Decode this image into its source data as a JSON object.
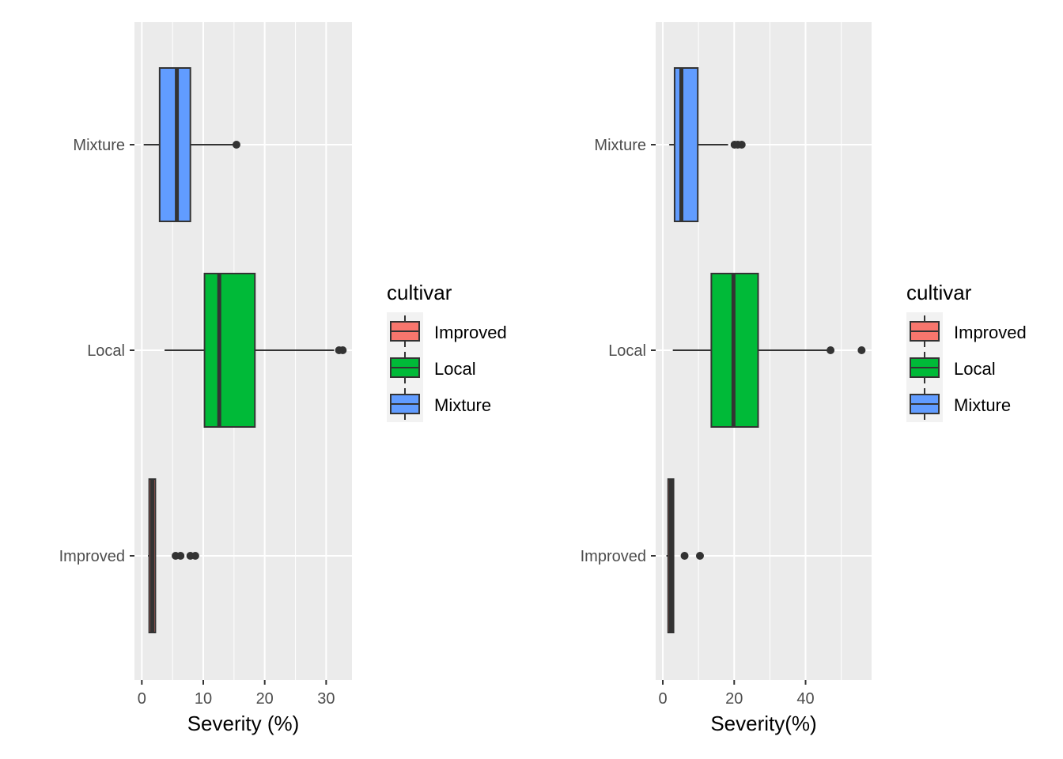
{
  "chart_data": [
    {
      "type": "boxplot",
      "orientation": "horizontal",
      "xlabel": "Severity (%)",
      "xlim": [
        -1.2,
        34.2
      ],
      "xticks": [
        0,
        10,
        20,
        30
      ],
      "minor_xticks": [
        5,
        15,
        25
      ],
      "categories": [
        "Improved",
        "Local",
        "Mixture"
      ],
      "series": [
        {
          "name": "Improved",
          "color": "#F8766D",
          "q1": 1.2,
          "median": 1.7,
          "q3": 2.2,
          "whisker_low": 1.0,
          "whisker_high": 2.2,
          "outliers": [
            5.5,
            6.3,
            7.9,
            8.7
          ]
        },
        {
          "name": "Local",
          "color": "#00BA38",
          "q1": 10.2,
          "median": 12.6,
          "q3": 18.4,
          "whisker_low": 3.7,
          "whisker_high": 31.3,
          "outliers": [
            32.1,
            32.7
          ]
        },
        {
          "name": "Mixture",
          "color": "#619CFF",
          "q1": 2.9,
          "median": 5.7,
          "q3": 7.9,
          "whisker_low": 0.3,
          "whisker_high": 15.3,
          "outliers": [
            15.4
          ]
        }
      ],
      "legend": {
        "title": "cultivar",
        "items": [
          "Improved",
          "Local",
          "Mixture"
        ],
        "position": "right"
      },
      "grid": true
    },
    {
      "type": "boxplot",
      "orientation": "horizontal",
      "xlabel": "Severity(%)",
      "xlim": [
        -2.0,
        58.5
      ],
      "xticks": [
        0,
        20,
        40
      ],
      "minor_xticks": [
        10,
        30,
        50
      ],
      "categories": [
        "Improved",
        "Local",
        "Mixture"
      ],
      "series": [
        {
          "name": "Improved",
          "color": "#F8766D",
          "q1": 1.5,
          "median": 2.3,
          "q3": 3.0,
          "whisker_low": 1.0,
          "whisker_high": 3.0,
          "outliers": [
            6.1,
            10.4
          ]
        },
        {
          "name": "Local",
          "color": "#00BA38",
          "q1": 13.6,
          "median": 19.8,
          "q3": 26.7,
          "whisker_low": 2.8,
          "whisker_high": 47.0,
          "outliers": [
            47.0,
            55.7
          ]
        },
        {
          "name": "Mixture",
          "color": "#619CFF",
          "q1": 3.3,
          "median": 5.2,
          "q3": 9.8,
          "whisker_low": 1.8,
          "whisker_high": 18.3,
          "outliers": [
            20.1,
            21.0,
            22.1
          ]
        }
      ],
      "legend": {
        "title": "cultivar",
        "items": [
          "Improved",
          "Local",
          "Mixture"
        ],
        "position": "right"
      },
      "grid": true
    }
  ],
  "colors": {
    "panel_background": "#EBEBEB",
    "grid_line": "#FFFFFF",
    "box_outline": "#333333",
    "tick_text": "#4D4D4D"
  }
}
